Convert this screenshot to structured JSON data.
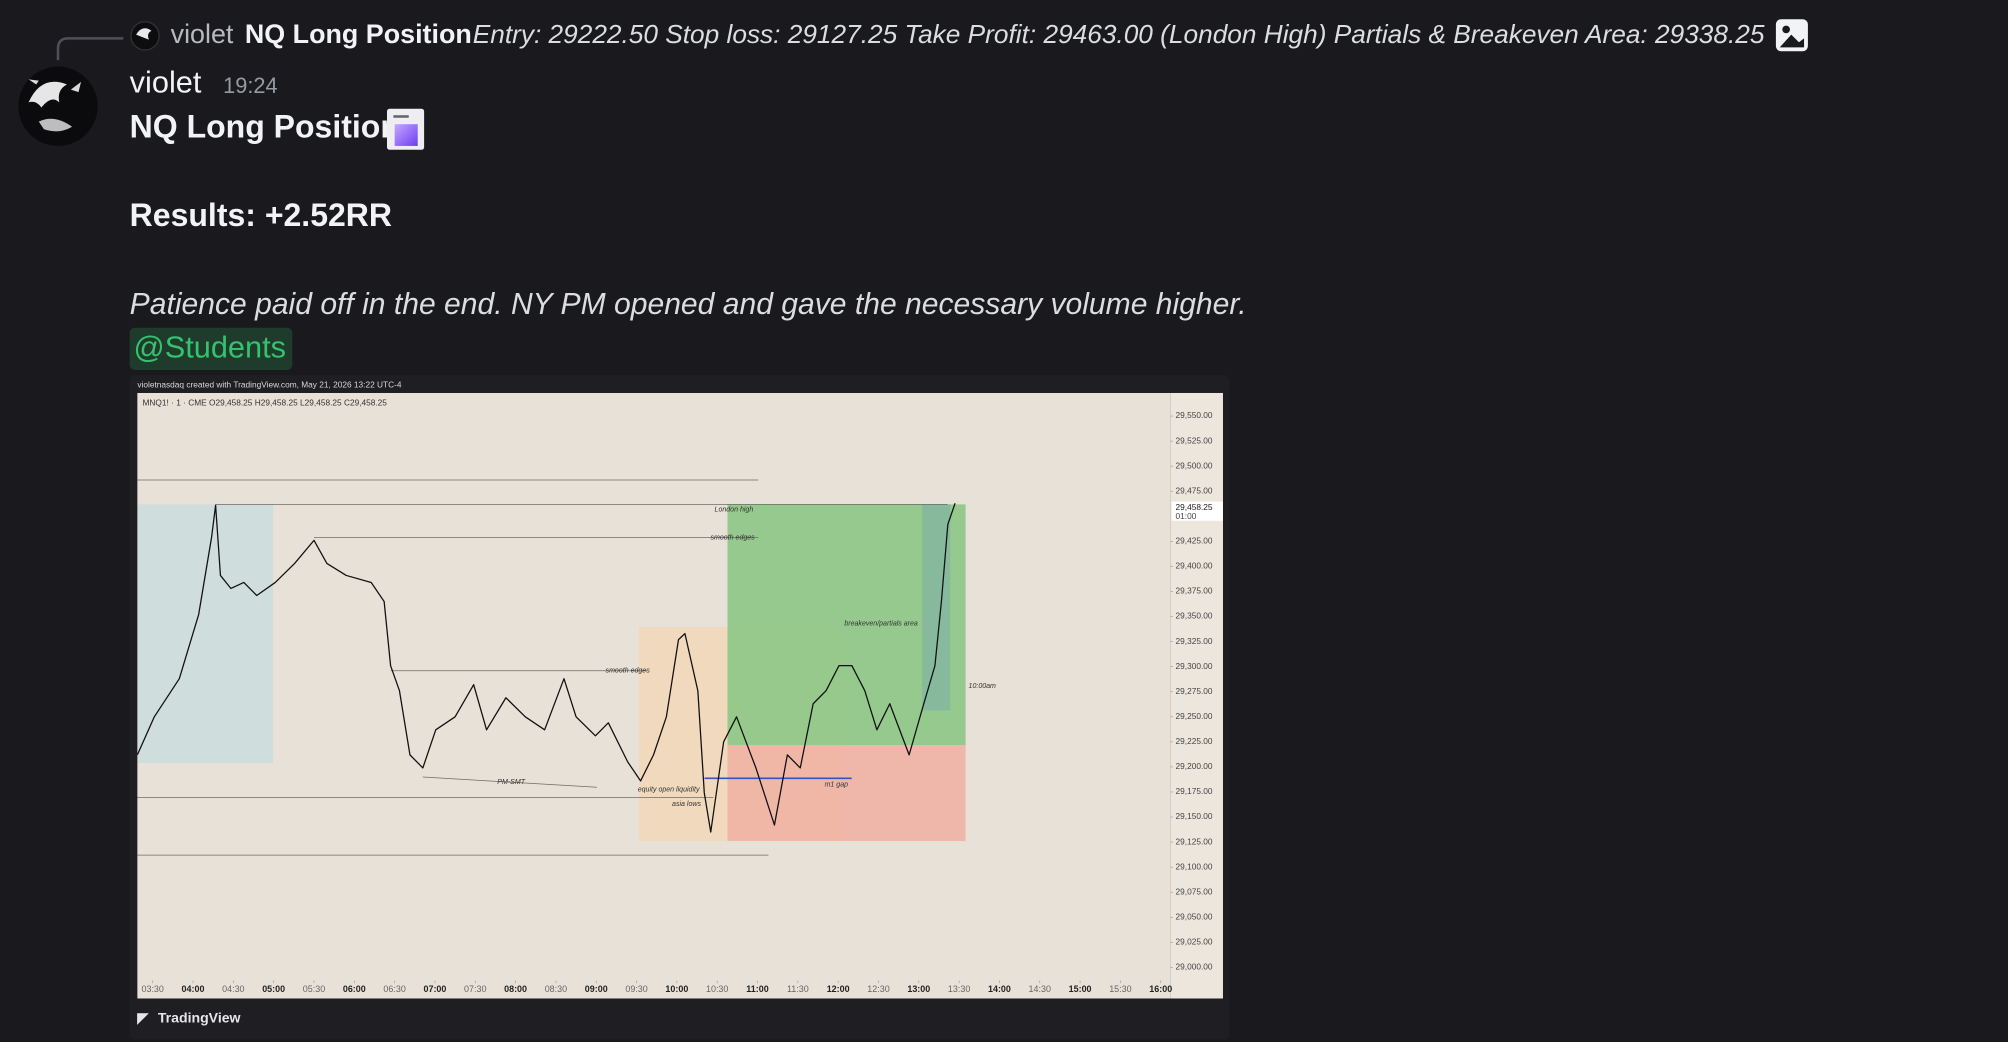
{
  "reply": {
    "author": "violet",
    "title": "NQ Long Position",
    "text": "Entry: 29222.50 Stop loss: 29127.25 Take Profit: 29463.00 (London High) Partials & Breakeven Area: 29338.25"
  },
  "message": {
    "author": "violet",
    "time": "19:24",
    "title": "NQ Long Position",
    "results": "Results: +2.52RR",
    "note": "Patience paid off in the end. NY PM opened and gave the necessary volume higher.",
    "mention": "@Students"
  },
  "attachment": {
    "header": "violetnasdaq created with TradingView.com, May 21, 2026 13:22 UTC-4",
    "symbol_line": "MNQ1! · 1 · CME  O29,458.25  H29,458.25  L29,458.25  C29,458.25",
    "footer": "TradingView",
    "chart": {
      "type": "line",
      "color": "#111111",
      "x": [
        3.31,
        3.52,
        3.83,
        4.07,
        4.23,
        4.28,
        4.34,
        4.47,
        4.63,
        4.79,
        5.02,
        5.26,
        5.5,
        5.66,
        5.9,
        6.21,
        6.37,
        6.45,
        6.56,
        6.69,
        6.85,
        7.01,
        7.25,
        7.48,
        7.64,
        7.88,
        8.12,
        8.36,
        8.6,
        8.75,
        8.99,
        9.15,
        9.39,
        9.55,
        9.71,
        9.87,
        10.02,
        10.1,
        10.26,
        10.34,
        10.42,
        10.58,
        10.74,
        10.98,
        11.21,
        11.37,
        11.53,
        11.69,
        11.85,
        12.01,
        12.17,
        12.33,
        12.48,
        12.64,
        12.88,
        13.04,
        13.2,
        13.28,
        13.36,
        13.45
      ],
      "values": [
        29212,
        29250,
        29288,
        29352,
        29429,
        29461,
        29391,
        29378,
        29384,
        29371,
        29384,
        29403,
        29426,
        29403,
        29391,
        29384,
        29365,
        29301,
        29276,
        29212,
        29199,
        29237,
        29250,
        29282,
        29237,
        29269,
        29250,
        29237,
        29288,
        29250,
        29231,
        29244,
        29205,
        29186,
        29212,
        29250,
        29327,
        29333,
        29276,
        29174,
        29135,
        29225,
        29250,
        29199,
        29142,
        29212,
        29199,
        29263,
        29276,
        29301,
        29301,
        29276,
        29237,
        29263,
        29212,
        29257,
        29301,
        29365,
        29442,
        29463
      ],
      "xlim": [
        3.31,
        16.12
      ],
      "ylim": [
        28969,
        29573
      ],
      "xticks": [
        {
          "value": 3.5,
          "label": "03:30"
        },
        {
          "value": 4,
          "label": "04:00"
        },
        {
          "value": 4.5,
          "label": "04:30"
        },
        {
          "value": 5,
          "label": "05:00"
        },
        {
          "value": 5.5,
          "label": "05:30"
        },
        {
          "value": 6,
          "label": "06:00"
        },
        {
          "value": 6.5,
          "label": "06:30"
        },
        {
          "value": 7,
          "label": "07:00"
        },
        {
          "value": 7.5,
          "label": "07:30"
        },
        {
          "value": 8,
          "label": "08:00"
        },
        {
          "value": 8.5,
          "label": "08:30"
        },
        {
          "value": 9,
          "label": "09:00"
        },
        {
          "value": 9.5,
          "label": "09:30"
        },
        {
          "value": 10,
          "label": "10:00"
        },
        {
          "value": 10.5,
          "label": "10:30"
        },
        {
          "value": 11,
          "label": "11:00"
        },
        {
          "value": 11.5,
          "label": "11:30"
        },
        {
          "value": 12,
          "label": "12:00"
        },
        {
          "value": 12.5,
          "label": "12:30"
        },
        {
          "value": 13,
          "label": "13:00"
        },
        {
          "value": 13.5,
          "label": "13:30"
        },
        {
          "value": 14,
          "label": "14:00"
        },
        {
          "value": 14.5,
          "label": "14:30"
        },
        {
          "value": 15,
          "label": "15:00"
        },
        {
          "value": 15.5,
          "label": "15:30"
        },
        {
          "value": 16,
          "label": "16:00"
        }
      ],
      "yticks": [
        {
          "value": 29550,
          "label": "29,550.00"
        },
        {
          "value": 29525,
          "label": "29,525.00"
        },
        {
          "value": 29500,
          "label": "29,500.00"
        },
        {
          "value": 29475,
          "label": "29,475.00"
        },
        {
          "value": 29425,
          "label": "29,425.00"
        },
        {
          "value": 29400,
          "label": "29,400.00"
        },
        {
          "value": 29375,
          "label": "29,375.00"
        },
        {
          "value": 29350,
          "label": "29,350.00"
        },
        {
          "value": 29325,
          "label": "29,325.00"
        },
        {
          "value": 29300,
          "label": "29,300.00"
        },
        {
          "value": 29275,
          "label": "29,275.00"
        },
        {
          "value": 29250,
          "label": "29,250.00"
        },
        {
          "value": 29225,
          "label": "29,225.00"
        },
        {
          "value": 29200,
          "label": "29,200.00"
        },
        {
          "value": 29175,
          "label": "29,175.00"
        },
        {
          "value": 29150,
          "label": "29,150.00"
        },
        {
          "value": 29125,
          "label": "29,125.00"
        },
        {
          "value": 29100,
          "label": "29,100.00"
        },
        {
          "value": 29075,
          "label": "29,075.00"
        },
        {
          "value": 29050,
          "label": "29,050.00"
        },
        {
          "value": 29025,
          "label": "29,025.00"
        },
        {
          "value": 29000,
          "label": "29,000.00"
        }
      ],
      "last_price": {
        "value": 29458.25,
        "label": "29,458.25"
      },
      "last_time": "01:00",
      "annotations": [
        "London high",
        "smooth edges",
        "breakeven/partials area",
        "10:00am",
        "smooth edges",
        "PM-SMT",
        "equity open liquidity",
        "asia lows",
        "m1 gap"
      ]
    }
  }
}
